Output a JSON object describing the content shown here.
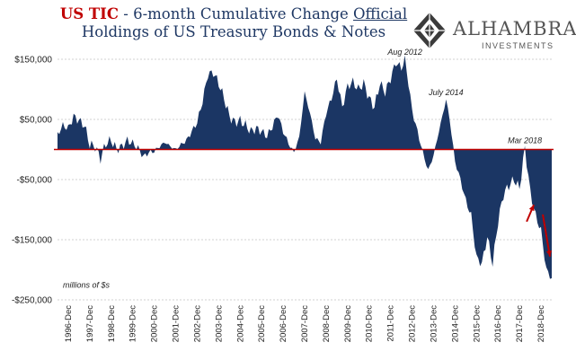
{
  "title": {
    "prefix": "US TIC",
    "middle": " - 6-month Cumulative Change ",
    "underlined": "Official",
    "line2": "Holdings of US Treasury Bonds & Notes"
  },
  "logo": {
    "name": "ALHAMBRA",
    "sub": "INVESTMENTS"
  },
  "colors": {
    "bars": "#1b3664",
    "zero_line": "#c00000",
    "arrows": "#c00000",
    "title_red": "#c00000",
    "title_blue": "#1f3864"
  },
  "chart_data": {
    "type": "area",
    "unit_note": "millions of $s",
    "ylim": [
      -250000,
      150000
    ],
    "yticks": [
      150000,
      50000,
      -50000,
      -150000,
      -250000
    ],
    "ytick_labels": [
      "$150,000",
      "$50,000",
      "-$50,000",
      "-$150,000",
      "-$250,000"
    ],
    "grid": true,
    "xlim_months": [
      "1996-06",
      "2019-06"
    ],
    "x_tick_labels": [
      "1996-Dec",
      "1997-Dec",
      "1998-Dec",
      "1999-Dec",
      "2000-Dec",
      "2001-Dec",
      "2002-Dec",
      "2003-Dec",
      "2004-Dec",
      "2005-Dec",
      "2006-Dec",
      "2007-Dec",
      "2008-Dec",
      "2009-Dec",
      "2010-Dec",
      "2011-Dec",
      "2012-Dec",
      "2013-Dec",
      "2014-Dec",
      "2015-Dec",
      "2016-Dec",
      "2017-Dec",
      "2018-Dec"
    ],
    "annotations": [
      {
        "text": "Aug 2012",
        "x": "2012-08",
        "y": 150000
      },
      {
        "text": "July 2014",
        "x": "2014-07",
        "y": 83000
      },
      {
        "text": "Mar 2018",
        "x": "2018-03",
        "y": 3000
      }
    ],
    "arrows": [
      {
        "from": [
          "2018-04",
          -120000
        ],
        "to": [
          "2018-08",
          -92000
        ]
      },
      {
        "from": [
          "2019-01",
          -108000
        ],
        "to": [
          "2019-05",
          -178000
        ]
      }
    ],
    "anchors": [
      [
        "1996-06",
        25000
      ],
      [
        "1996-09",
        40000
      ],
      [
        "1996-12",
        35000
      ],
      [
        "1997-03",
        55000
      ],
      [
        "1997-06",
        48000
      ],
      [
        "1997-09",
        40000
      ],
      [
        "1997-12",
        8000
      ],
      [
        "1998-03",
        5000
      ],
      [
        "1998-06",
        -15000
      ],
      [
        "1998-09",
        10000
      ],
      [
        "1998-12",
        15000
      ],
      [
        "1999-03",
        0
      ],
      [
        "1999-06",
        5000
      ],
      [
        "1999-09",
        15000
      ],
      [
        "1999-12",
        10000
      ],
      [
        "2000-03",
        2000
      ],
      [
        "2000-06",
        -12000
      ],
      [
        "2000-09",
        -5000
      ],
      [
        "2000-12",
        -3000
      ],
      [
        "2001-03",
        5000
      ],
      [
        "2001-06",
        12000
      ],
      [
        "2001-09",
        5000
      ],
      [
        "2001-12",
        0
      ],
      [
        "2002-03",
        8000
      ],
      [
        "2002-06",
        15000
      ],
      [
        "2002-09",
        30000
      ],
      [
        "2002-12",
        45000
      ],
      [
        "2003-03",
        80000
      ],
      [
        "2003-06",
        125000
      ],
      [
        "2003-09",
        128000
      ],
      [
        "2003-12",
        110000
      ],
      [
        "2004-03",
        85000
      ],
      [
        "2004-06",
        55000
      ],
      [
        "2004-09",
        45000
      ],
      [
        "2004-12",
        48000
      ],
      [
        "2005-03",
        40000
      ],
      [
        "2005-06",
        30000
      ],
      [
        "2005-09",
        35000
      ],
      [
        "2005-12",
        30000
      ],
      [
        "2006-03",
        22000
      ],
      [
        "2006-06",
        38000
      ],
      [
        "2006-09",
        58000
      ],
      [
        "2006-12",
        30000
      ],
      [
        "2007-03",
        10000
      ],
      [
        "2007-06",
        -5000
      ],
      [
        "2007-09",
        20000
      ],
      [
        "2007-12",
        95000
      ],
      [
        "2008-03",
        60000
      ],
      [
        "2008-06",
        18000
      ],
      [
        "2008-09",
        12000
      ],
      [
        "2008-12",
        60000
      ],
      [
        "2009-03",
        85000
      ],
      [
        "2009-06",
        118000
      ],
      [
        "2009-09",
        70000
      ],
      [
        "2009-12",
        105000
      ],
      [
        "2010-03",
        112000
      ],
      [
        "2010-06",
        100000
      ],
      [
        "2010-09",
        110000
      ],
      [
        "2010-12",
        85000
      ],
      [
        "2011-03",
        70000
      ],
      [
        "2011-06",
        110000
      ],
      [
        "2011-09",
        95000
      ],
      [
        "2011-12",
        118000
      ],
      [
        "2012-03",
        145000
      ],
      [
        "2012-06",
        135000
      ],
      [
        "2012-08",
        150000
      ],
      [
        "2012-10",
        110000
      ],
      [
        "2012-12",
        65000
      ],
      [
        "2013-03",
        30000
      ],
      [
        "2013-06",
        -5000
      ],
      [
        "2013-09",
        -35000
      ],
      [
        "2013-12",
        -10000
      ],
      [
        "2014-03",
        30000
      ],
      [
        "2014-07",
        83000
      ],
      [
        "2014-09",
        50000
      ],
      [
        "2014-12",
        -20000
      ],
      [
        "2015-03",
        -50000
      ],
      [
        "2015-06",
        -85000
      ],
      [
        "2015-09",
        -110000
      ],
      [
        "2015-12",
        -180000
      ],
      [
        "2016-03",
        -190000
      ],
      [
        "2016-06",
        -145000
      ],
      [
        "2016-09",
        -190000
      ],
      [
        "2016-12",
        -120000
      ],
      [
        "2017-03",
        -75000
      ],
      [
        "2017-06",
        -60000
      ],
      [
        "2017-09",
        -50000
      ],
      [
        "2017-12",
        -65000
      ],
      [
        "2018-03",
        3000
      ],
      [
        "2018-06",
        -70000
      ],
      [
        "2018-09",
        -110000
      ],
      [
        "2018-12",
        -135000
      ],
      [
        "2019-03",
        -200000
      ],
      [
        "2019-06",
        -215000
      ]
    ]
  }
}
